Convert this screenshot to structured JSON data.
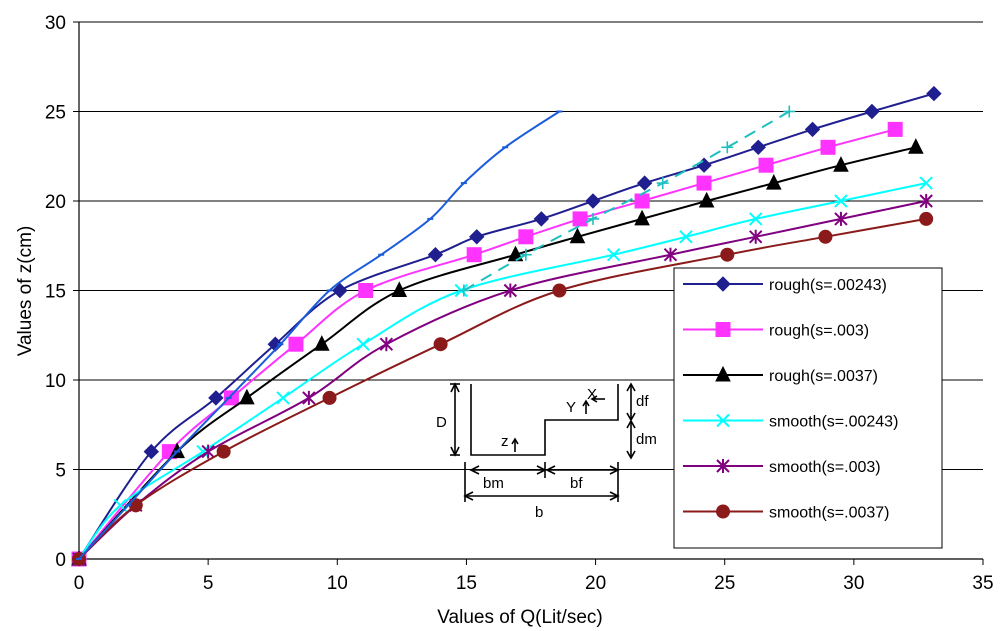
{
  "chart_data": {
    "type": "line",
    "xlabel": "Values of Q(Lit/sec)",
    "ylabel": "Values of z(cm)",
    "xlim": [
      0,
      35
    ],
    "ylim": [
      0,
      30
    ],
    "xticks": [
      0,
      5,
      10,
      15,
      20,
      25,
      30,
      35
    ],
    "yticks": [
      0,
      5,
      10,
      15,
      20,
      25,
      30
    ],
    "grid": "horizontal",
    "legend_position": "right",
    "series": [
      {
        "name": "rough(s=.00243)",
        "color": "#1f1f8f",
        "marker": "diamond",
        "legend": true,
        "x": [
          0,
          2.8,
          5.3,
          7.6,
          10.1,
          13.8,
          15.4,
          17.9,
          19.9,
          21.9,
          24.2,
          26.3,
          28.4,
          30.7,
          33.1
        ],
        "y": [
          0,
          6,
          9,
          12,
          15,
          17,
          18,
          19,
          20,
          21,
          22,
          23,
          24,
          25,
          26
        ]
      },
      {
        "name": "rough(s=.003)",
        "color": "#ff33ff",
        "marker": "square",
        "legend": true,
        "x": [
          0,
          3.5,
          5.9,
          8.4,
          11.1,
          15.3,
          17.3,
          19.4,
          21.8,
          24.2,
          26.6,
          29.0,
          31.6
        ],
        "y": [
          0,
          6,
          9,
          12,
          15,
          17,
          18,
          19,
          20,
          21,
          22,
          23,
          24
        ]
      },
      {
        "name": "rough(s=.0037)",
        "color": "#000000",
        "marker": "triangle",
        "legend": true,
        "x": [
          0,
          3.8,
          6.5,
          9.4,
          12.4,
          16.9,
          19.3,
          21.8,
          24.3,
          26.9,
          29.5,
          32.4
        ],
        "y": [
          0,
          6,
          9,
          12,
          15,
          17,
          18,
          19,
          20,
          21,
          22,
          23
        ]
      },
      {
        "name": "smooth(s=.00243)",
        "color": "#00ffff",
        "marker": "x",
        "legend": true,
        "x": [
          0,
          1.6,
          4.8,
          7.9,
          11.0,
          14.8,
          20.7,
          23.5,
          26.2,
          29.5,
          32.8
        ],
        "y": [
          0,
          3,
          6,
          9,
          12,
          15,
          17,
          18,
          19,
          20,
          21
        ]
      },
      {
        "name": "smooth(s=.003)",
        "color": "#800080",
        "marker": "star",
        "legend": true,
        "x": [
          0,
          2.2,
          5.0,
          8.9,
          11.9,
          16.7,
          22.9,
          26.2,
          29.5,
          32.8
        ],
        "y": [
          0,
          3,
          6,
          9,
          12,
          15,
          17,
          18,
          19,
          20
        ]
      },
      {
        "name": "smooth(s=.0037)",
        "color": "#8b1a1a",
        "marker": "circle",
        "legend": true,
        "x": [
          0,
          2.2,
          5.6,
          9.7,
          14.0,
          18.6,
          25.1,
          28.9,
          32.8
        ],
        "y": [
          0,
          3,
          6,
          9,
          12,
          15,
          17,
          18,
          19
        ]
      },
      {
        "name": "",
        "color": "#1a5cdb",
        "marker": "dash",
        "legend": false,
        "style": "solid",
        "x": [
          0,
          1.9,
          3.8,
          5.8,
          7.8,
          9.7,
          11.7,
          13.6,
          14.9,
          16.5,
          18.6
        ],
        "y": [
          0,
          3,
          6,
          9,
          12,
          15,
          17,
          19,
          21,
          23,
          25
        ]
      },
      {
        "name": "",
        "color": "#1fbfbf",
        "marker": "plus",
        "legend": false,
        "style": "dashed",
        "x": [
          14.9,
          17.3,
          19.9,
          22.6,
          25.1,
          27.5
        ],
        "y": [
          15,
          17,
          19,
          21,
          23,
          25
        ]
      }
    ],
    "inset_labels": {
      "D": "D",
      "df": "df",
      "dm": "dm",
      "z": "z",
      "Y": "Y",
      "X": "X",
      "bm": "bm",
      "bf": "bf",
      "b": "b"
    }
  }
}
